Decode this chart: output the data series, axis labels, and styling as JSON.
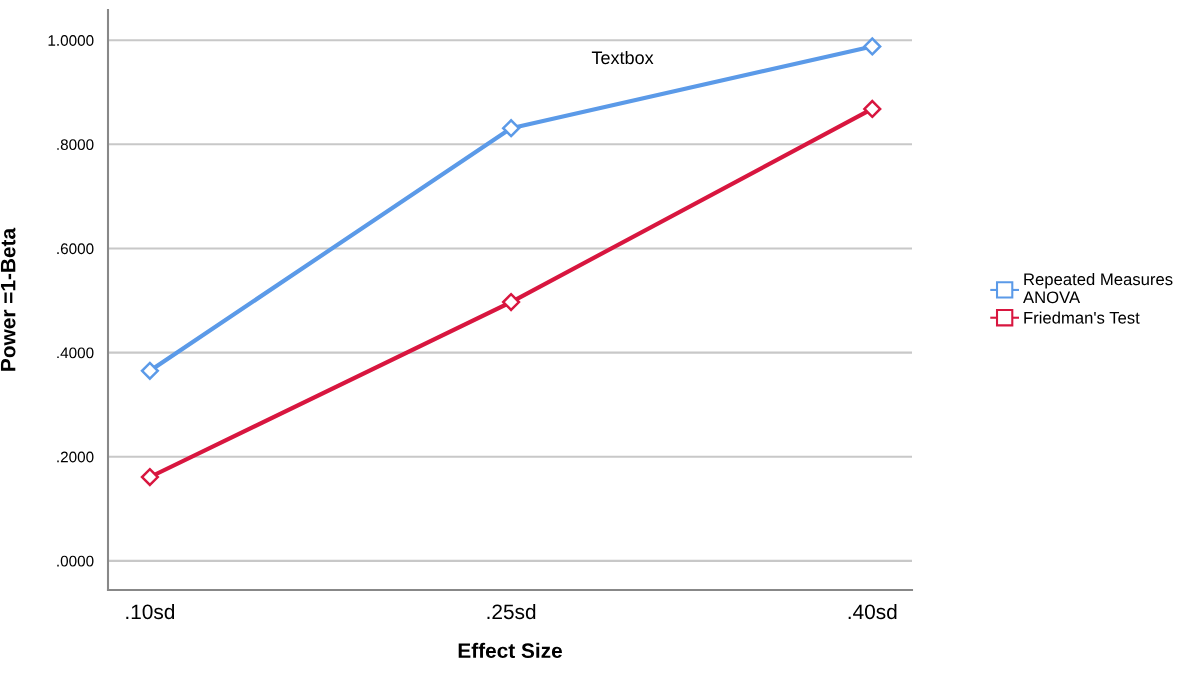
{
  "chart_data": {
    "type": "line",
    "xlabel": "Effect Size",
    "ylabel": "Power =1-Beta",
    "categories": [
      ".10sd",
      ".25sd",
      ".40sd"
    ],
    "series": [
      {
        "name": "Repeated Measures\nANOVA",
        "color": "#5b9ae8",
        "values": [
          0.365,
          0.831,
          0.988
        ]
      },
      {
        "name": "Friedman's Test",
        "color": "#d8163f",
        "values": [
          0.161,
          0.497,
          0.868
        ]
      }
    ],
    "ylim": [
      -0.056,
      1.058
    ],
    "yticks": [
      {
        "value": 0,
        "label": ".0000"
      },
      {
        "value": 0.2,
        "label": ".2000"
      },
      {
        "value": 0.4,
        "label": ".4000"
      },
      {
        "value": 0.6,
        "label": ".6000"
      },
      {
        "value": 0.8,
        "label": ".8000"
      },
      {
        "value": 1.0,
        "label": "1.0000"
      }
    ],
    "annotations": [
      "Textbox"
    ],
    "grid": "y",
    "legend": "right",
    "marker": "diamond",
    "line_style": "solid"
  }
}
